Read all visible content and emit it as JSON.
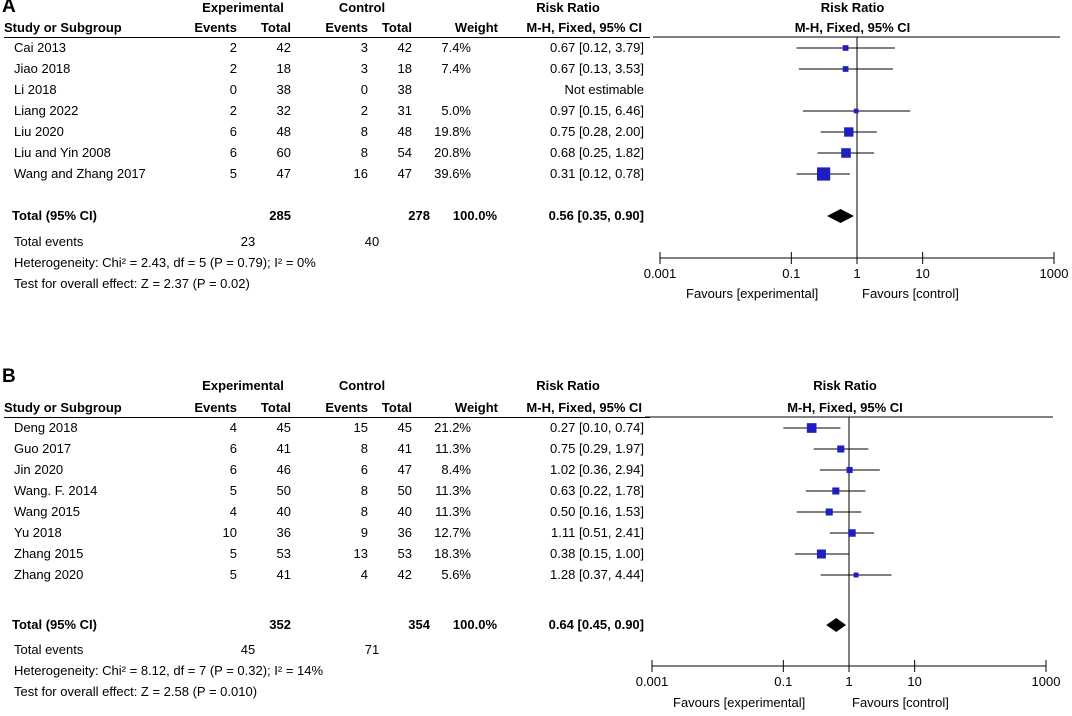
{
  "chart_data": [
    {
      "type": "forest",
      "panel_label": "A",
      "group_headers": {
        "experimental": "Experimental",
        "control": "Control",
        "risk_ratio": "Risk Ratio",
        "plot_title": "Risk Ratio"
      },
      "columns": {
        "study": "Study or Subgroup",
        "exp_events": "Events",
        "exp_total": "Total",
        "ctrl_events": "Events",
        "ctrl_total": "Total",
        "weight": "Weight",
        "ci": "M-H, Fixed, 95% CI",
        "plot_sub": "M-H, Fixed, 95% CI"
      },
      "studies": [
        {
          "name": "Cai 2013",
          "exp_events": "2",
          "exp_total": "42",
          "ctrl_events": "3",
          "ctrl_total": "42",
          "weight": "7.4%",
          "ci_text": "0.67 [0.12, 3.79]",
          "rr": 0.67,
          "lo": 0.12,
          "hi": 3.79,
          "w": 7.4
        },
        {
          "name": "Jiao 2018",
          "exp_events": "2",
          "exp_total": "18",
          "ctrl_events": "3",
          "ctrl_total": "18",
          "weight": "7.4%",
          "ci_text": "0.67 [0.13, 3.53]",
          "rr": 0.67,
          "lo": 0.13,
          "hi": 3.53,
          "w": 7.4
        },
        {
          "name": "Li 2018",
          "exp_events": "0",
          "exp_total": "38",
          "ctrl_events": "0",
          "ctrl_total": "38",
          "weight": "",
          "ci_text": "Not estimable",
          "rr": null,
          "lo": null,
          "hi": null,
          "w": 0
        },
        {
          "name": "Liang 2022",
          "exp_events": "2",
          "exp_total": "32",
          "ctrl_events": "2",
          "ctrl_total": "31",
          "weight": "5.0%",
          "ci_text": "0.97 [0.15, 6.46]",
          "rr": 0.97,
          "lo": 0.15,
          "hi": 6.46,
          "w": 5.0
        },
        {
          "name": "Liu 2020",
          "exp_events": "6",
          "exp_total": "48",
          "ctrl_events": "8",
          "ctrl_total": "48",
          "weight": "19.8%",
          "ci_text": "0.75 [0.28, 2.00]",
          "rr": 0.75,
          "lo": 0.28,
          "hi": 2.0,
          "w": 19.8
        },
        {
          "name": "Liu and Yin 2008",
          "exp_events": "6",
          "exp_total": "60",
          "ctrl_events": "8",
          "ctrl_total": "54",
          "weight": "20.8%",
          "ci_text": "0.68 [0.25, 1.82]",
          "rr": 0.68,
          "lo": 0.25,
          "hi": 1.82,
          "w": 20.8
        },
        {
          "name": "Wang and Zhang 2017",
          "exp_events": "5",
          "exp_total": "47",
          "ctrl_events": "16",
          "ctrl_total": "47",
          "weight": "39.6%",
          "ci_text": "0.31 [0.12, 0.78]",
          "rr": 0.31,
          "lo": 0.12,
          "hi": 0.78,
          "w": 39.6
        }
      ],
      "total": {
        "label": "Total (95% CI)",
        "exp_total": "285",
        "ctrl_total": "278",
        "weight": "100.0%",
        "ci_text": "0.56 [0.35, 0.90]",
        "rr": 0.56,
        "lo": 0.35,
        "hi": 0.9
      },
      "total_events": {
        "label": "Total events",
        "exp": "23",
        "ctrl": "40"
      },
      "heterogeneity": "Heterogeneity: Chi² = 2.43, df = 5 (P = 0.79); I² = 0%",
      "overall_effect": "Test for overall effect: Z = 2.37 (P = 0.02)",
      "axis": {
        "scale": "log",
        "range": [
          0.001,
          1000
        ],
        "ticks": [
          0.001,
          0.1,
          1,
          10,
          1000
        ],
        "tick_labels": [
          "0.001",
          "0.1",
          "1",
          "10",
          "1000"
        ]
      },
      "favours_left": "Favours [experimental]",
      "favours_right": "Favours [control]"
    },
    {
      "type": "forest",
      "panel_label": "B",
      "group_headers": {
        "experimental": "Experimental",
        "control": "Control",
        "risk_ratio": "Risk Ratio",
        "plot_title": "Risk Ratio"
      },
      "columns": {
        "study": "Study or Subgroup",
        "exp_events": "Events",
        "exp_total": "Total",
        "ctrl_events": "Events",
        "ctrl_total": "Total",
        "weight": "Weight",
        "ci": "M-H, Fixed, 95% CI",
        "plot_sub": "M-H, Fixed, 95% CI"
      },
      "studies": [
        {
          "name": "Deng 2018",
          "exp_events": "4",
          "exp_total": "45",
          "ctrl_events": "15",
          "ctrl_total": "45",
          "weight": "21.2%",
          "ci_text": "0.27 [0.10, 0.74]",
          "rr": 0.27,
          "lo": 0.1,
          "hi": 0.74,
          "w": 21.2
        },
        {
          "name": "Guo 2017",
          "exp_events": "6",
          "exp_total": "41",
          "ctrl_events": "8",
          "ctrl_total": "41",
          "weight": "11.3%",
          "ci_text": "0.75 [0.29, 1.97]",
          "rr": 0.75,
          "lo": 0.29,
          "hi": 1.97,
          "w": 11.3
        },
        {
          "name": "Jin 2020",
          "exp_events": "6",
          "exp_total": "46",
          "ctrl_events": "6",
          "ctrl_total": "47",
          "weight": "8.4%",
          "ci_text": "1.02 [0.36, 2.94]",
          "rr": 1.02,
          "lo": 0.36,
          "hi": 2.94,
          "w": 8.4
        },
        {
          "name": "Wang. F. 2014",
          "exp_events": "5",
          "exp_total": "50",
          "ctrl_events": "8",
          "ctrl_total": "50",
          "weight": "11.3%",
          "ci_text": "0.63 [0.22, 1.78]",
          "rr": 0.63,
          "lo": 0.22,
          "hi": 1.78,
          "w": 11.3
        },
        {
          "name": "Wang 2015",
          "exp_events": "4",
          "exp_total": "40",
          "ctrl_events": "8",
          "ctrl_total": "40",
          "weight": "11.3%",
          "ci_text": "0.50 [0.16, 1.53]",
          "rr": 0.5,
          "lo": 0.16,
          "hi": 1.53,
          "w": 11.3
        },
        {
          "name": "Yu 2018",
          "exp_events": "10",
          "exp_total": "36",
          "ctrl_events": "9",
          "ctrl_total": "36",
          "weight": "12.7%",
          "ci_text": "1.11 [0.51, 2.41]",
          "rr": 1.11,
          "lo": 0.51,
          "hi": 2.41,
          "w": 12.7
        },
        {
          "name": "Zhang 2015",
          "exp_events": "5",
          "exp_total": "53",
          "ctrl_events": "13",
          "ctrl_total": "53",
          "weight": "18.3%",
          "ci_text": "0.38 [0.15, 1.00]",
          "rr": 0.38,
          "lo": 0.15,
          "hi": 1.0,
          "w": 18.3
        },
        {
          "name": "Zhang 2020",
          "exp_events": "5",
          "exp_total": "41",
          "ctrl_events": "4",
          "ctrl_total": "42",
          "weight": "5.6%",
          "ci_text": "1.28 [0.37, 4.44]",
          "rr": 1.28,
          "lo": 0.37,
          "hi": 4.44,
          "w": 5.6
        }
      ],
      "total": {
        "label": "Total (95% CI)",
        "exp_total": "352",
        "ctrl_total": "354",
        "weight": "100.0%",
        "ci_text": "0.64 [0.45, 0.90]",
        "rr": 0.64,
        "lo": 0.45,
        "hi": 0.9
      },
      "total_events": {
        "label": "Total events",
        "exp": "45",
        "ctrl": "71"
      },
      "heterogeneity": "Heterogeneity: Chi² = 8.12, df = 7 (P = 0.32); I² = 14%",
      "overall_effect": "Test for overall effect: Z = 2.58 (P = 0.010)",
      "axis": {
        "scale": "log",
        "range": [
          0.001,
          1000
        ],
        "ticks": [
          0.001,
          0.1,
          1,
          10,
          1000
        ],
        "tick_labels": [
          "0.001",
          "0.1",
          "1",
          "10",
          "1000"
        ]
      },
      "favours_left": "Favours [experimental]",
      "favours_right": "Favours [control]"
    }
  ]
}
